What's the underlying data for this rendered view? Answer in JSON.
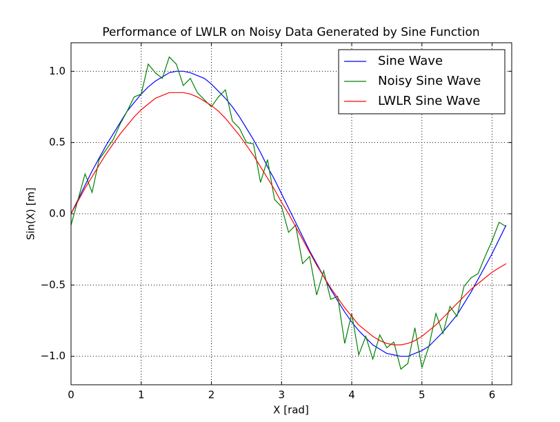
{
  "chart_data": {
    "type": "line",
    "title": "Performance of LWLR on Noisy Data Generated by Sine Function",
    "x_label": "X [rad]",
    "y_label": "Sin(X) [m]",
    "x": [
      0,
      0.1,
      0.2,
      0.3,
      0.4,
      0.5,
      0.6,
      0.7,
      0.8,
      0.9,
      1.0,
      1.1,
      1.2,
      1.3,
      1.4,
      1.5,
      1.6,
      1.7,
      1.8,
      1.9,
      2.0,
      2.1,
      2.2,
      2.3,
      2.4,
      2.5,
      2.6,
      2.7,
      2.8,
      2.9,
      3.0,
      3.1,
      3.2,
      3.3,
      3.4,
      3.5,
      3.6,
      3.7,
      3.8,
      3.9,
      4.0,
      4.1,
      4.2,
      4.3,
      4.4,
      4.5,
      4.6,
      4.7,
      4.8,
      4.9,
      5.0,
      5.1,
      5.2,
      5.3,
      5.4,
      5.5,
      5.6,
      5.7,
      5.8,
      5.9,
      6.0,
      6.1,
      6.2
    ],
    "series": [
      {
        "name": "Sine Wave",
        "color": "#0000ff",
        "values": [
          0.0,
          0.1,
          0.2,
          0.3,
          0.39,
          0.48,
          0.56,
          0.64,
          0.72,
          0.78,
          0.84,
          0.89,
          0.93,
          0.96,
          0.99,
          1.0,
          1.0,
          0.99,
          0.97,
          0.95,
          0.91,
          0.86,
          0.81,
          0.75,
          0.68,
          0.6,
          0.52,
          0.43,
          0.33,
          0.24,
          0.14,
          0.04,
          -0.06,
          -0.16,
          -0.26,
          -0.35,
          -0.44,
          -0.53,
          -0.61,
          -0.69,
          -0.76,
          -0.82,
          -0.87,
          -0.92,
          -0.95,
          -0.98,
          -0.99,
          -1.0,
          -1.0,
          -0.98,
          -0.96,
          -0.93,
          -0.88,
          -0.83,
          -0.77,
          -0.71,
          -0.63,
          -0.55,
          -0.46,
          -0.37,
          -0.28,
          -0.18,
          -0.08
        ]
      },
      {
        "name": "Noisy Sine Wave",
        "color": "#008000",
        "values": [
          -0.08,
          0.1,
          0.28,
          0.15,
          0.38,
          0.45,
          0.52,
          0.63,
          0.72,
          0.82,
          0.84,
          1.05,
          0.99,
          0.95,
          1.1,
          1.05,
          0.9,
          0.95,
          0.85,
          0.8,
          0.75,
          0.82,
          0.87,
          0.65,
          0.6,
          0.5,
          0.49,
          0.22,
          0.38,
          0.1,
          0.05,
          -0.13,
          -0.08,
          -0.35,
          -0.3,
          -0.57,
          -0.4,
          -0.6,
          -0.58,
          -0.91,
          -0.7,
          -0.99,
          -0.86,
          -1.02,
          -0.85,
          -0.94,
          -0.9,
          -1.09,
          -1.05,
          -0.8,
          -1.08,
          -0.93,
          -0.7,
          -0.84,
          -0.65,
          -0.72,
          -0.51,
          -0.45,
          -0.42,
          -0.3,
          -0.19,
          -0.06,
          -0.09
        ]
      },
      {
        "name": "LWLR Sine Wave",
        "color": "#ff0000",
        "values": [
          0.0,
          0.09,
          0.18,
          0.26,
          0.34,
          0.42,
          0.49,
          0.56,
          0.62,
          0.68,
          0.73,
          0.77,
          0.81,
          0.83,
          0.85,
          0.85,
          0.85,
          0.84,
          0.82,
          0.79,
          0.76,
          0.72,
          0.67,
          0.61,
          0.55,
          0.48,
          0.41,
          0.33,
          0.25,
          0.17,
          0.08,
          0.0,
          -0.09,
          -0.18,
          -0.27,
          -0.36,
          -0.44,
          -0.52,
          -0.59,
          -0.66,
          -0.72,
          -0.78,
          -0.82,
          -0.86,
          -0.89,
          -0.91,
          -0.92,
          -0.92,
          -0.91,
          -0.89,
          -0.86,
          -0.82,
          -0.78,
          -0.73,
          -0.68,
          -0.63,
          -0.58,
          -0.53,
          -0.49,
          -0.45,
          -0.41,
          -0.38,
          -0.35
        ]
      }
    ],
    "xlim": [
      0,
      6.28
    ],
    "ylim": [
      -1.2,
      1.2
    ],
    "xticks": [
      0,
      1,
      2,
      3,
      4,
      5,
      6
    ],
    "yticks": [
      {
        "value": -1.0,
        "label": "−1.0"
      },
      {
        "value": -0.5,
        "label": "−0.5"
      },
      {
        "value": 0.0,
        "label": "0.0"
      },
      {
        "value": 0.5,
        "label": "0.5"
      },
      {
        "value": 1.0,
        "label": "1.0"
      }
    ],
    "grid": true,
    "legend": "upper right"
  }
}
